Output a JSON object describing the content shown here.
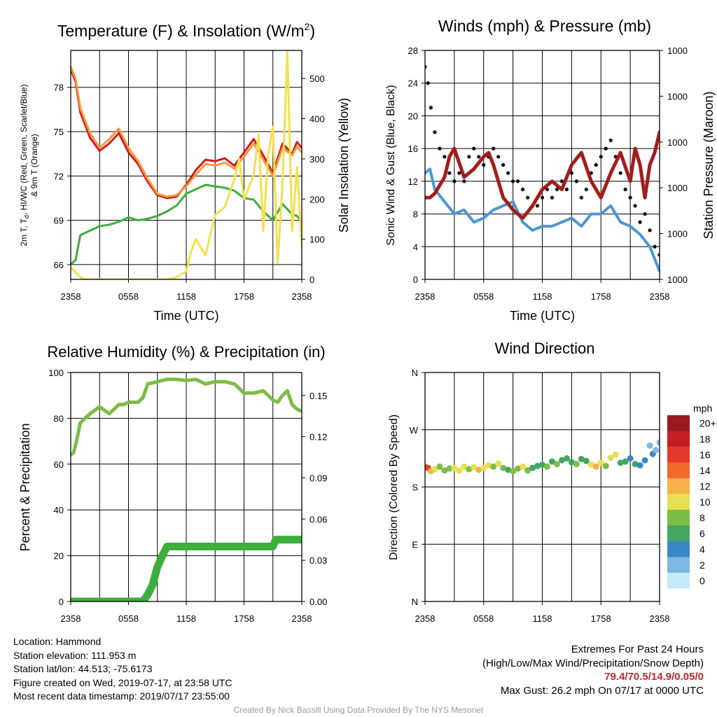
{
  "chart_data": [
    {
      "type": "line",
      "title": "Temperature (F) & Insolation (W/m²)",
      "xlabel": "Time (UTC)",
      "ylabel": "2m T, Td, HI/WC (Red, Green, Scarlet/Blue) & 9m T (Orange)",
      "ylabel_right": "Solar Insolation (Yellow)",
      "x_ticks": [
        "2358",
        "0558",
        "1158",
        "1758",
        "2358"
      ],
      "y_ticks": [
        "66",
        "69",
        "72",
        "75",
        "78"
      ],
      "y_right_ticks": [
        "0",
        "100",
        "200",
        "300",
        "400",
        "500"
      ],
      "ylim": [
        65,
        80.5
      ],
      "ylim_right": [
        0,
        570
      ],
      "series": [
        {
          "name": "2m T",
          "color": "#d7191c",
          "axis": "left",
          "x": [
            0,
            0.5,
            1,
            2,
            3,
            4,
            5,
            6,
            7,
            8,
            9,
            10,
            11,
            12,
            13,
            14,
            15,
            16,
            17,
            18,
            19,
            20,
            21,
            22,
            23,
            23.5,
            24
          ],
          "values": [
            79.2,
            78.4,
            76.3,
            74.6,
            73.7,
            74.2,
            74.9,
            73.6,
            72.8,
            71.6,
            70.7,
            70.5,
            70.6,
            71.4,
            72.4,
            73.1,
            73.0,
            73.2,
            72.7,
            73.6,
            74.5,
            73.4,
            72.2,
            74.2,
            73.5,
            74.3,
            73.9
          ]
        },
        {
          "name": "9m T",
          "color": "#f39a3c",
          "axis": "left",
          "x": [
            0,
            0.5,
            1,
            2,
            3,
            4,
            5,
            6,
            7,
            8,
            9,
            10,
            11,
            12,
            13,
            14,
            15,
            16,
            17,
            18,
            19,
            20,
            21,
            22,
            23,
            23.5,
            24
          ],
          "values": [
            79.4,
            78.6,
            76.6,
            74.9,
            73.9,
            74.5,
            75.2,
            73.9,
            73.0,
            71.8,
            70.8,
            70.6,
            70.7,
            71.3,
            72.1,
            72.8,
            72.7,
            72.9,
            72.5,
            73.3,
            74.2,
            73.1,
            72.0,
            73.9,
            73.4,
            74.0,
            73.6
          ]
        },
        {
          "name": "Td",
          "color": "#3cae3c",
          "axis": "left",
          "x": [
            0,
            0.5,
            1,
            2,
            3,
            4,
            5,
            6,
            7,
            8,
            9,
            10,
            11,
            12,
            13,
            14,
            15,
            16,
            17,
            18,
            19,
            20,
            21,
            22,
            23,
            23.5,
            24
          ],
          "values": [
            66.0,
            66.3,
            68.0,
            68.3,
            68.6,
            68.7,
            68.9,
            69.2,
            69.0,
            69.1,
            69.3,
            69.6,
            70.0,
            70.8,
            71.1,
            71.4,
            71.3,
            71.2,
            71.0,
            70.5,
            70.4,
            69.6,
            69.0,
            70.1,
            69.4,
            69.3,
            68.9
          ]
        },
        {
          "name": "Solar Insolation",
          "color": "#f5df4d",
          "axis": "right",
          "x": [
            0,
            1,
            1.5,
            2,
            4,
            6,
            8,
            10,
            11,
            12,
            12.5,
            13,
            14,
            15,
            16,
            17,
            17.5,
            18,
            19,
            19.5,
            20,
            20.5,
            21,
            21.5,
            22,
            22.5,
            23,
            23.5,
            24
          ],
          "values": [
            30,
            5,
            0,
            0,
            0,
            0,
            0,
            0,
            5,
            20,
            70,
            100,
            60,
            160,
            180,
            250,
            300,
            200,
            260,
            360,
            120,
            310,
            380,
            40,
            240,
            570,
            120,
            280,
            80
          ]
        }
      ]
    },
    {
      "type": "line",
      "title": "Winds (mph) & Pressure (mb)",
      "xlabel": "Time (UTC)",
      "ylabel": "Sonic Wind & Gust (Blue, Black)",
      "ylabel_right": "Station Pressure (Maroon)",
      "x_ticks": [
        "2358",
        "0558",
        "1158",
        "1758",
        "2358"
      ],
      "y_ticks": [
        "0",
        "4",
        "8",
        "12",
        "16",
        "20",
        "24",
        "28"
      ],
      "y_right_ticks": [
        "1000",
        "1000",
        "1000",
        "1000",
        "1000",
        "1000"
      ],
      "ylim": [
        0,
        28
      ],
      "series": [
        {
          "name": "Sonic Wind",
          "color": "#4c96d4",
          "axis": "left",
          "x": [
            0,
            0.5,
            1,
            2,
            3,
            4,
            5,
            6,
            7,
            8,
            9,
            10,
            11,
            12,
            13,
            14,
            15,
            16,
            17,
            18,
            19,
            20,
            21,
            22,
            23,
            23.5,
            24
          ],
          "values": [
            13,
            13.5,
            11,
            9.5,
            8,
            8.5,
            7,
            7.5,
            8.5,
            9,
            9.5,
            7,
            6,
            6.5,
            6.5,
            7,
            7.5,
            6.5,
            8,
            8,
            9,
            7,
            6.5,
            5.5,
            4,
            2.5,
            1
          ]
        },
        {
          "name": "Gust",
          "color": "#000000",
          "axis": "left",
          "x": [
            0,
            0.3,
            0.6,
            1,
            1.5,
            2,
            2.5,
            3,
            3.5,
            4,
            4.5,
            5,
            5.5,
            6,
            6.5,
            7,
            7.5,
            8,
            8.5,
            9,
            9.5,
            10,
            10.5,
            11,
            11.5,
            12,
            12.5,
            13,
            13.5,
            14,
            14.5,
            15,
            15.5,
            16,
            16.5,
            17,
            17.5,
            18,
            18.5,
            19,
            19.5,
            20,
            20.5,
            21,
            21.5,
            22,
            22.5,
            23,
            23.5,
            24
          ],
          "values": [
            26,
            24,
            21,
            18,
            16,
            15,
            13,
            12,
            13,
            12,
            15,
            16,
            15,
            14,
            15,
            16,
            15,
            14,
            13,
            12,
            12,
            11,
            10,
            9,
            9,
            10,
            11,
            10,
            11,
            12,
            11,
            13,
            12,
            10,
            11,
            13,
            14,
            15,
            16,
            17,
            15,
            13,
            11,
            10,
            9,
            7,
            8,
            6,
            4,
            3
          ]
        },
        {
          "name": "Station Pressure",
          "color": "#a31d1d",
          "axis": "right",
          "x": [
            0,
            0.5,
            1,
            1.5,
            2,
            2.5,
            3,
            4,
            5,
            6,
            6.5,
            7,
            8,
            9,
            10,
            11,
            12,
            13,
            14,
            15,
            16,
            17,
            18,
            19,
            20,
            21,
            21.5,
            22,
            22.5,
            23,
            23.5,
            24
          ],
          "values": [
            10,
            10,
            10.5,
            11.5,
            12.5,
            15,
            16,
            12.5,
            13.5,
            15,
            15.5,
            14,
            10,
            8.5,
            7.5,
            9,
            11,
            12,
            11,
            14,
            15.5,
            12,
            10,
            13,
            15.5,
            12,
            16,
            14,
            10,
            14,
            15.5,
            18
          ]
        }
      ]
    },
    {
      "type": "line",
      "title": "Relative Humidity (%) & Precipitation (in)",
      "xlabel": "",
      "ylabel": "Percent & Precipitation",
      "x_ticks": [
        "2358",
        "0558",
        "1158",
        "1758",
        "2358"
      ],
      "y_ticks": [
        "0",
        "20",
        "40",
        "60",
        "80",
        "100"
      ],
      "y_right_ticks": [
        "0.00",
        "0.03",
        "0.06",
        "0.09",
        "0.12",
        "0.15"
      ],
      "ylim": [
        0,
        100
      ],
      "ylim_right": [
        0,
        0.1667
      ],
      "series": [
        {
          "name": "Relative Humidity",
          "color": "#7cbd47",
          "axis": "left",
          "x": [
            0,
            0.3,
            0.6,
            1,
            2,
            3,
            4,
            5,
            5.5,
            6,
            7,
            7.5,
            8,
            9,
            10,
            11,
            12,
            13,
            14,
            15,
            16,
            17,
            18,
            19,
            20,
            21,
            21.5,
            22,
            22.5,
            23,
            23.5,
            24
          ],
          "values": [
            64,
            65,
            70,
            78,
            82,
            85,
            82,
            86,
            86,
            87,
            87,
            89,
            95,
            96,
            97,
            97,
            96.5,
            97,
            95,
            96,
            96,
            95,
            91,
            91,
            92,
            88,
            87,
            90,
            92,
            86,
            84,
            83
          ]
        },
        {
          "name": "Precipitation",
          "color": "#3cae3c",
          "axis": "right",
          "x": [
            0,
            2,
            4,
            6,
            7.5,
            8,
            8.5,
            9,
            9.5,
            10,
            12,
            14,
            16,
            18,
            20,
            21,
            21.3,
            22,
            24
          ],
          "values": [
            0,
            0,
            0,
            0,
            0,
            0.005,
            0.012,
            0.025,
            0.033,
            0.04,
            0.04,
            0.04,
            0.04,
            0.04,
            0.04,
            0.04,
            0.045,
            0.045,
            0.045
          ]
        }
      ]
    },
    {
      "type": "scatter",
      "title": "Wind Direction",
      "ylabel": "Direction (Colored By Speed)",
      "x_ticks": [
        "2358",
        "0558",
        "1158",
        "1758",
        "2358"
      ],
      "y_ticks": [
        "N",
        "E",
        "S",
        "W",
        "N"
      ],
      "ylim": [
        0,
        360
      ],
      "legend_title": "mph",
      "legend_labels": [
        "0",
        "2",
        "4",
        "6",
        "8",
        "10",
        "12",
        "14",
        "16",
        "18",
        "20+"
      ],
      "legend_colors": [
        "#c6e9f8",
        "#7cb9e2",
        "#3c87c7",
        "#45a664",
        "#7cbd47",
        "#e5e04f",
        "#f7b04b",
        "#ef6a2c",
        "#e23a2c",
        "#c21e24",
        "#9a1a1d"
      ],
      "x": [
        0,
        0.3,
        0.6,
        1,
        1.5,
        2,
        2.5,
        3,
        3.5,
        4,
        4.5,
        5,
        5.5,
        6,
        6.5,
        7,
        7.5,
        8,
        8.5,
        9,
        9.5,
        10,
        10.5,
        11,
        11.5,
        12,
        12.5,
        13,
        13.5,
        14,
        14.5,
        15,
        15.5,
        16,
        16.5,
        17,
        17.5,
        18,
        18.5,
        19,
        19.5,
        20,
        20.5,
        21,
        21.5,
        22,
        22.5,
        23,
        23.3,
        23.6,
        24
      ],
      "values": [
        212,
        210,
        205,
        208,
        212,
        206,
        209,
        210,
        206,
        212,
        208,
        211,
        207,
        210,
        214,
        212,
        217,
        210,
        207,
        205,
        209,
        212,
        206,
        210,
        213,
        215,
        212,
        220,
        216,
        222,
        225,
        219,
        216,
        224,
        221,
        215,
        212,
        218,
        213,
        226,
        231,
        218,
        220,
        225,
        216,
        214,
        222,
        245,
        232,
        238,
        250
      ],
      "speeds": [
        14,
        15,
        12,
        9,
        8,
        7,
        8,
        9,
        10,
        9,
        8,
        10,
        11,
        10,
        9,
        8,
        9,
        7,
        6,
        7,
        8,
        9,
        7,
        6,
        5,
        6,
        7,
        6,
        7,
        6,
        5,
        6,
        7,
        5,
        6,
        10,
        11,
        9,
        8,
        10,
        9,
        5,
        6,
        4,
        5,
        3,
        4,
        2,
        3,
        2,
        1
      ]
    }
  ],
  "info": {
    "location": "Location: Hammond",
    "elevation": "Station elevation: 111.953 m",
    "latlon": "Station lat/lon: 44.513; -75.6173",
    "created": "Figure created on Wed, 2019-07-17, at 23:58 UTC",
    "recent": "Most recent data timestamp: 2019/07/17 23:55:00"
  },
  "extremes": {
    "title": "Extremes For Past 24 Hours",
    "subtitle": "(High/Low/Max Wind/Precipitation/Snow Depth)",
    "values": "79.4/70.5/14.9/0.05/0",
    "max_gust": "Max Gust: 26.2 mph On 07/17 at 0000 UTC"
  },
  "credit": "Created By Nick Bassill Using Data Provided By The NYS Mesonet"
}
